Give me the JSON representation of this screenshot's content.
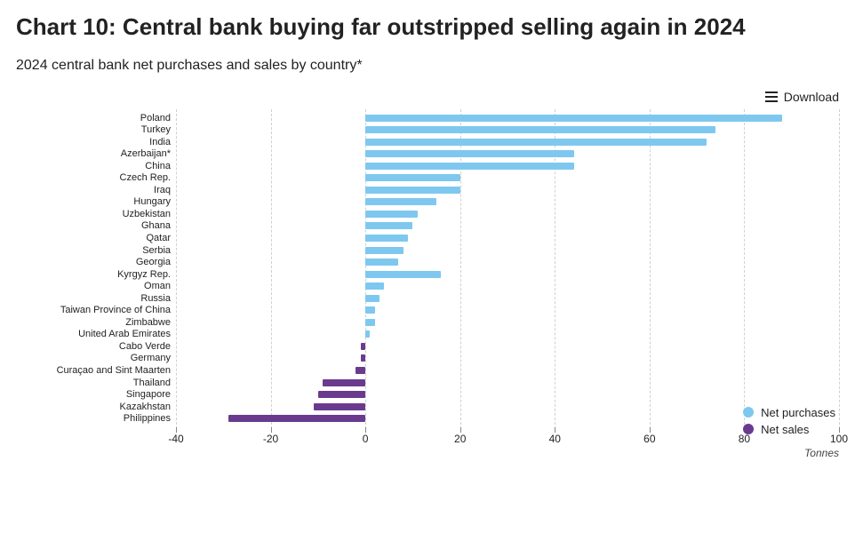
{
  "chart": {
    "title": "Chart 10: Central bank buying far outstripped selling again in 2024",
    "subtitle": "2024 central bank net purchases and sales by country*",
    "download_label": "Download",
    "type": "horizontal-bar-diverging",
    "background_color": "#ffffff",
    "grid_color": "#d0d0d0",
    "grid_style": "dashed",
    "title_fontsize": 26,
    "subtitle_fontsize": 16,
    "label_fontsize": 11,
    "tick_fontsize": 12,
    "xaxis": {
      "min": -40,
      "max": 100,
      "tick_step": 20,
      "title": "Tonnes"
    },
    "series_colors": {
      "net_purchases": "#7ec8f0",
      "net_sales": "#6a3a8f"
    },
    "legend": {
      "items": [
        {
          "label": "Net purchases",
          "color_key": "net_purchases"
        },
        {
          "label": "Net sales",
          "color_key": "net_sales"
        }
      ],
      "position": "bottom-right"
    },
    "data": [
      {
        "label": "Poland",
        "value": 88,
        "series": "net_purchases"
      },
      {
        "label": "Turkey",
        "value": 74,
        "series": "net_purchases"
      },
      {
        "label": "India",
        "value": 72,
        "series": "net_purchases"
      },
      {
        "label": "Azerbaijan*",
        "value": 44,
        "series": "net_purchases"
      },
      {
        "label": "China",
        "value": 44,
        "series": "net_purchases"
      },
      {
        "label": "Czech Rep.",
        "value": 20,
        "series": "net_purchases"
      },
      {
        "label": "Iraq",
        "value": 20,
        "series": "net_purchases"
      },
      {
        "label": "Hungary",
        "value": 15,
        "series": "net_purchases"
      },
      {
        "label": "Uzbekistan",
        "value": 11,
        "series": "net_purchases"
      },
      {
        "label": "Ghana",
        "value": 10,
        "series": "net_purchases"
      },
      {
        "label": "Qatar",
        "value": 9,
        "series": "net_purchases"
      },
      {
        "label": "Serbia",
        "value": 8,
        "series": "net_purchases"
      },
      {
        "label": "Georgia",
        "value": 7,
        "series": "net_purchases"
      },
      {
        "label": "Kyrgyz Rep.",
        "value": 16,
        "series": "net_purchases"
      },
      {
        "label": "Oman",
        "value": 4,
        "series": "net_purchases"
      },
      {
        "label": "Russia",
        "value": 3,
        "series": "net_purchases"
      },
      {
        "label": "Taiwan Province of China",
        "value": 2,
        "series": "net_purchases"
      },
      {
        "label": "Zimbabwe",
        "value": 2,
        "series": "net_purchases"
      },
      {
        "label": "United Arab Emirates",
        "value": 1,
        "series": "net_purchases"
      },
      {
        "label": "Cabo Verde",
        "value": -1,
        "series": "net_sales"
      },
      {
        "label": "Germany",
        "value": -1,
        "series": "net_sales"
      },
      {
        "label": "Curaçao and Sint Maarten",
        "value": -2,
        "series": "net_sales"
      },
      {
        "label": "Thailand",
        "value": -9,
        "series": "net_sales"
      },
      {
        "label": "Singapore",
        "value": -10,
        "series": "net_sales"
      },
      {
        "label": "Kazakhstan",
        "value": -11,
        "series": "net_sales"
      },
      {
        "label": "Philippines",
        "value": -29,
        "series": "net_sales"
      }
    ]
  }
}
